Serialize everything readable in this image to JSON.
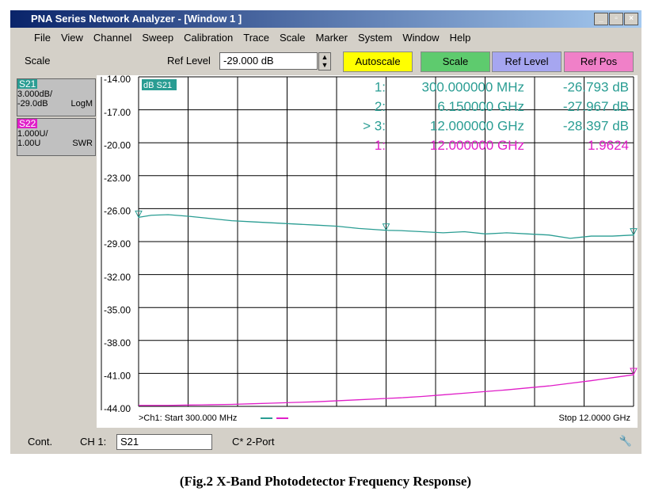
{
  "window": {
    "title": "PNA Series Network Analyzer - [Window 1 ]",
    "menu": [
      "File",
      "View",
      "Channel",
      "Sweep",
      "Calibration",
      "Trace",
      "Scale",
      "Marker",
      "System",
      "Window",
      "Help"
    ]
  },
  "toolbar": {
    "label": "Scale",
    "field_label": "Ref Level",
    "field_value": "-29.000 dB",
    "buttons": [
      "Autoscale",
      "Scale",
      "Ref Level",
      "Ref Pos"
    ]
  },
  "trace_panel": [
    {
      "name": "S21",
      "scale": "3.000dB/",
      "ref": "-29.0dB",
      "format": "LogM"
    },
    {
      "name": "S22",
      "scale": "1.000U/",
      "ref": "1.00U",
      "format": "SWR"
    }
  ],
  "chart_data": {
    "type": "line",
    "trace_label": "dB S21",
    "x": [
      0.3,
      0.6,
      1,
      1.5,
      2,
      2.5,
      3,
      3.5,
      4,
      4.5,
      5,
      5.5,
      6.15,
      6.5,
      7,
      7.5,
      8,
      8.5,
      9,
      9.5,
      10,
      10.5,
      11,
      11.5,
      12
    ],
    "xlim": [
      0.3,
      12
    ],
    "start_label": ">Ch1: Start  300.000 MHz",
    "stop_label": "Stop  12.0000 GHz",
    "ylim": [
      -44,
      -14
    ],
    "yticks": [
      {
        "value": -14,
        "label": "-14.00"
      },
      {
        "value": -17,
        "label": "-17.00"
      },
      {
        "value": -20,
        "label": "-20.00"
      },
      {
        "value": -23,
        "label": "-23.00"
      },
      {
        "value": -26,
        "label": "-26.00"
      },
      {
        "value": -29,
        "label": "-29.00"
      },
      {
        "value": -32,
        "label": "-32.00"
      },
      {
        "value": -35,
        "label": "-35.00"
      },
      {
        "value": -38,
        "label": "-38.00"
      },
      {
        "value": -41,
        "label": "-41.00"
      },
      {
        "value": -44,
        "label": "-44.00"
      }
    ],
    "y2lim": [
      1,
      11
    ],
    "grid": true,
    "series": [
      {
        "name": "S21",
        "color": "#2a9d93",
        "values": [
          -26.79,
          -26.6,
          -26.55,
          -26.7,
          -26.9,
          -27.1,
          -27.2,
          -27.3,
          -27.4,
          -27.5,
          -27.6,
          -27.8,
          -27.97,
          -28.0,
          -28.1,
          -28.2,
          -28.1,
          -28.3,
          -28.2,
          -28.3,
          -28.4,
          -28.7,
          -28.5,
          -28.5,
          -28.4
        ],
        "markers": [
          {
            "label": "1:",
            "x": 0.3,
            "stimulus": "300.000000 MHz",
            "y": -26.793,
            "response": "-26.793 dB"
          },
          {
            "label": "2:",
            "x": 6.15,
            "stimulus": "6.150000 GHz",
            "y": -27.967,
            "response": "-27.967 dB"
          },
          {
            "label": "> 3:",
            "x": 12,
            "stimulus": "12.000000 GHz",
            "y": -28.397,
            "response": "-28.397 dB"
          }
        ]
      },
      {
        "name": "S22",
        "color": "#e01ec8",
        "axis": "y2",
        "values": [
          1.03,
          1.03,
          1.03,
          1.04,
          1.05,
          1.06,
          1.08,
          1.1,
          1.12,
          1.14,
          1.17,
          1.2,
          1.24,
          1.26,
          1.3,
          1.35,
          1.4,
          1.45,
          1.5,
          1.56,
          1.62,
          1.7,
          1.78,
          1.87,
          1.96
        ],
        "markers": [
          {
            "label": "1:",
            "x": 12,
            "stimulus": "12.000000 GHz",
            "y": 1.9624,
            "response": "1.9624"
          }
        ]
      }
    ]
  },
  "status": {
    "mode": "Cont.",
    "channel": "CH 1:",
    "measurement": "S21",
    "cal": "C* 2-Port"
  },
  "caption": "(Fig.2 X-Band Photodetector Frequency Response)"
}
